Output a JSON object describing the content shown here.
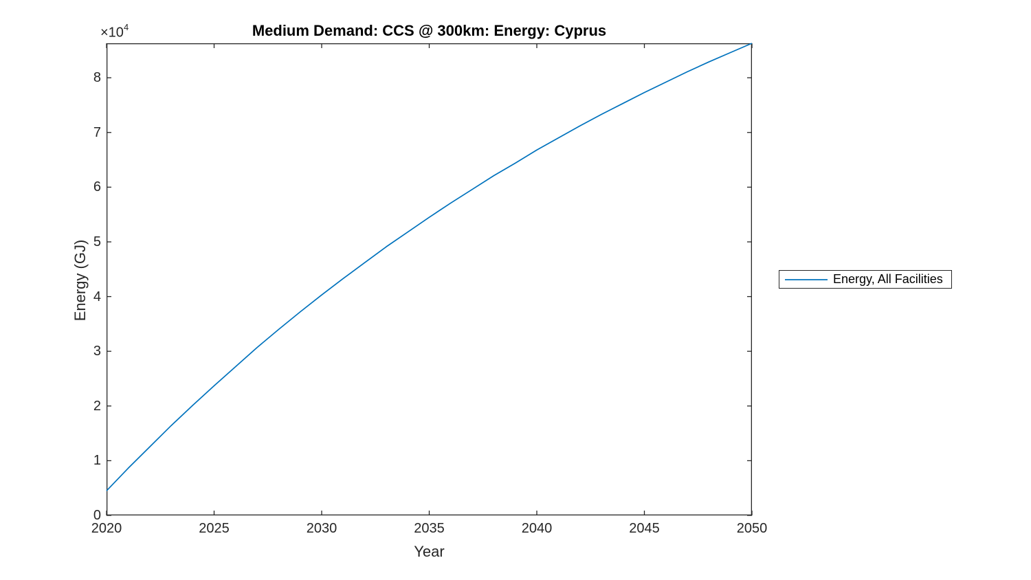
{
  "figure": {
    "title": "Medium Demand: CCS @ 300km: Energy: Cyprus",
    "xlabel": "Year",
    "ylabel": "Energy (GJ)",
    "y_offset_base": "×10",
    "y_offset_exp": "4"
  },
  "legend": {
    "entries": [
      {
        "label": "Energy, All Facilities",
        "color": "#0072BD"
      }
    ]
  },
  "colors": {
    "line": "#0072BD",
    "axis": "#262626",
    "title": "#000000",
    "background": "#ffffff"
  },
  "chart_data": {
    "type": "line",
    "title": "Medium Demand: CCS @ 300km: Energy: Cyprus",
    "xlabel": "Year",
    "ylabel": "Energy (GJ)",
    "y_axis_offset_text": "×10⁴",
    "xlim": [
      2020,
      2050
    ],
    "ylim": [
      0,
      86300
    ],
    "xticks": [
      2020,
      2025,
      2030,
      2035,
      2040,
      2045,
      2050
    ],
    "yticks": [
      0,
      10000,
      20000,
      30000,
      40000,
      50000,
      60000,
      70000,
      80000
    ],
    "ytick_labels": [
      "0",
      "1",
      "2",
      "3",
      "4",
      "5",
      "6",
      "7",
      "8"
    ],
    "grid": false,
    "legend_position": "right-outside",
    "x": [
      2020,
      2021,
      2022,
      2023,
      2024,
      2025,
      2026,
      2027,
      2028,
      2029,
      2030,
      2031,
      2032,
      2033,
      2034,
      2035,
      2036,
      2037,
      2038,
      2039,
      2040,
      2041,
      2042,
      2043,
      2044,
      2045,
      2046,
      2047,
      2048,
      2049,
      2050
    ],
    "series": [
      {
        "name": "Energy, All Facilities",
        "color": "#0072BD",
        "values": [
          4500,
          8600,
          12500,
          16400,
          20100,
          23700,
          27200,
          30700,
          34000,
          37200,
          40300,
          43300,
          46200,
          49100,
          51800,
          54500,
          57100,
          59600,
          62100,
          64400,
          66800,
          69000,
          71200,
          73300,
          75300,
          77300,
          79200,
          81100,
          82900,
          84600,
          86300
        ]
      }
    ]
  }
}
